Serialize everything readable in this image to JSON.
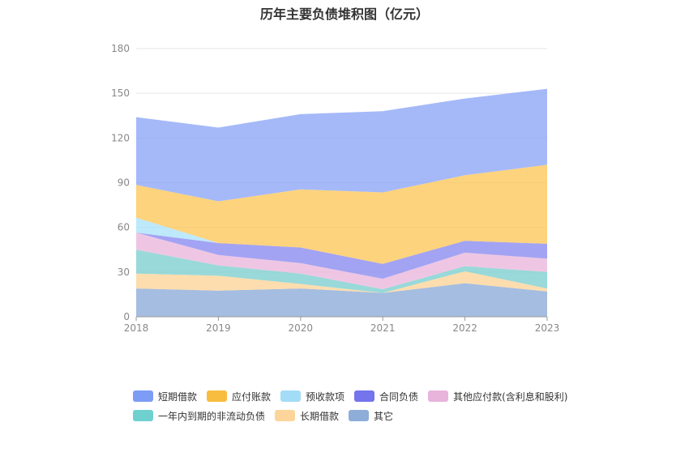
{
  "chart_data": {
    "type": "area",
    "stacked": true,
    "title": "历年主要负债堆积图（亿元）",
    "categories": [
      "2018",
      "2019",
      "2020",
      "2021",
      "2022",
      "2023"
    ],
    "ylim": [
      0,
      180
    ],
    "yticks": [
      0,
      30,
      60,
      90,
      120,
      150,
      180
    ],
    "grid": true,
    "legend_position": "bottom",
    "series": [
      {
        "name": "其它",
        "color": "#8eadd8",
        "values": [
          19,
          17.5,
          19,
          16,
          22.5,
          17
        ]
      },
      {
        "name": "长期借款",
        "color": "#fdd59a",
        "values": [
          10,
          10,
          3,
          0,
          8,
          2
        ]
      },
      {
        "name": "一年内到期的非流动负债",
        "color": "#7fd0d0",
        "values": [
          16,
          7,
          7,
          2.5,
          3.5,
          11
        ]
      },
      {
        "name": "其他应付款(含利息和股利)",
        "color": "#eab8dd",
        "values": [
          11.5,
          7,
          7,
          7,
          9,
          9
        ]
      },
      {
        "name": "合同负债",
        "color": "#8c8cf0",
        "values": [
          0,
          8,
          10.5,
          10,
          8,
          10
        ]
      },
      {
        "name": "预收款项",
        "color": "#ade3fa",
        "values": [
          10,
          0,
          0,
          0,
          0,
          0
        ]
      },
      {
        "name": "应付账款",
        "color": "#fdc85c",
        "values": [
          22,
          28,
          39,
          48,
          44,
          53
        ]
      },
      {
        "name": "短期借款",
        "color": "#8fa8f7",
        "values": [
          45.5,
          49.5,
          50.5,
          54.5,
          51.5,
          51
        ]
      }
    ]
  },
  "legend": {
    "row1": [
      "短期借款",
      "应付账款",
      "预收款项",
      "合同负债",
      "其他应付款(含利息和股利)"
    ],
    "row2": [
      "一年内到期的非流动负债",
      "长期借款",
      "其它"
    ]
  },
  "legend_colors": {
    "row1": [
      "#7d9cf5",
      "#f8bd3e",
      "#a3dcf7",
      "#7474ec",
      "#e8b4dc"
    ],
    "row2": [
      "#6fd0d0",
      "#fdd59a",
      "#8eadd8"
    ]
  }
}
